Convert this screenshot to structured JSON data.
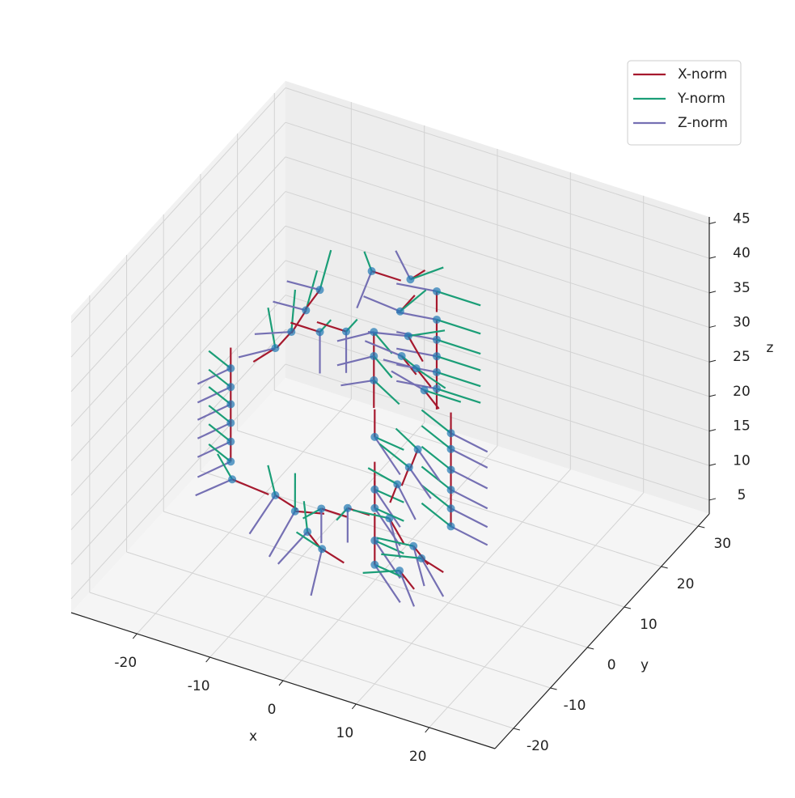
{
  "chart_data": {
    "type": "quiver3d",
    "xlabel": "x",
    "ylabel": "y",
    "zlabel": "z",
    "xlim": [
      -29,
      29
    ],
    "ylim": [
      -25,
      33
    ],
    "zlim": [
      3,
      46
    ],
    "xticks": [
      -20,
      -10,
      0,
      10,
      20
    ],
    "yticks": [
      -20,
      -10,
      0,
      10,
      20,
      30
    ],
    "zticks": [
      5,
      10,
      15,
      20,
      25,
      30,
      35,
      40,
      45
    ],
    "grid": true,
    "legend": "upper right",
    "points": {
      "color": "#1f77b4",
      "x": [
        -19.3,
        -19.3,
        -19.3,
        -19.3,
        -19.3,
        -19.3,
        -19.1,
        -13.2,
        -10.5,
        -6.9,
        -3.3,
        -8.8,
        -6.8,
        -13.2,
        -11.0,
        -9.0,
        -7.1,
        -7.1,
        -3.5,
        -8.1,
        -7.8,
        -7.8,
        -7.8,
        0.8,
        0.8,
        0.8,
        0.8,
        0.8,
        0.8,
        -4.2,
        -2.8,
        -3.1,
        -4.0,
        -2.0,
        -0.9,
        -0.1,
        -0.1,
        -0.1,
        -0.1,
        -0.1,
        7.8,
        7.8,
        7.8,
        7.8,
        7.8,
        7.8,
        5.8,
        4.6,
        3.0,
        1.9,
        5.2,
        6.3,
        3.3
      ],
      "y": [
        -1,
        -1,
        -1,
        -1,
        -1,
        -1,
        -1,
        -1,
        -1,
        -1,
        -1,
        -1,
        -1,
        -1,
        -1,
        -1,
        -1,
        -1,
        -1,
        15,
        15,
        15,
        15,
        15,
        15,
        15,
        15,
        15,
        15,
        15,
        15,
        15,
        15,
        15,
        15,
        0,
        0,
        0,
        0,
        0,
        5,
        5,
        5,
        5,
        5,
        5,
        0,
        0,
        0,
        0,
        0,
        0,
        0
      ],
      "z": [
        27.6,
        24.9,
        22.4,
        19.7,
        17.0,
        14.1,
        11.6,
        11.3,
        9.9,
        11.5,
        12.8,
        7.5,
        5.7,
        32.6,
        35.7,
        39.5,
        43.1,
        37.0,
        38.3,
        36.1,
        27.4,
        23.9,
        20.4,
        36.2,
        32.1,
        29.2,
        26.8,
        24.5,
        22.1,
        31.6,
        36.7,
        28.4,
        25.2,
        24.1,
        21.3,
        23.6,
        16.0,
        13.3,
        8.6,
        5.1,
        23.9,
        21.6,
        18.6,
        15.7,
        13.0,
        10.4,
        23.8,
        20.8,
        17.8,
        12.5,
        9.6,
        8.2,
        5.4
      ]
    },
    "series": [
      {
        "name": "X-norm",
        "color": "#a6192e",
        "u": [
          0,
          0,
          0,
          0,
          0,
          0,
          5,
          3,
          4,
          3.5,
          3,
          2,
          3,
          -3,
          -2,
          -2,
          -2,
          -4,
          -4,
          4,
          0,
          0,
          0,
          0,
          0,
          0,
          0,
          0,
          0,
          2,
          2,
          2,
          2,
          2,
          2,
          0,
          0,
          0,
          0,
          0,
          0,
          0,
          0,
          0,
          0,
          0,
          -1,
          -1,
          -1,
          2,
          2,
          3,
          2
        ],
        "v": [
          0,
          0,
          0,
          0,
          0,
          0,
          0,
          0,
          0,
          0,
          0,
          0,
          0,
          0,
          0,
          0,
          0,
          0,
          0,
          0,
          0,
          0,
          0,
          0,
          0,
          0,
          0,
          0,
          0,
          0,
          0,
          0,
          0,
          0,
          0,
          0,
          0,
          0,
          0,
          0,
          0,
          0,
          0,
          0,
          0,
          0,
          0,
          0,
          0,
          0,
          0,
          0,
          0
        ],
        "w": [
          3,
          3,
          3,
          3,
          3,
          3,
          -0.5,
          -1,
          1,
          0,
          0,
          -2,
          -1,
          -3,
          -3,
          -4,
          -3.5,
          0,
          0,
          0,
          -4,
          -4,
          -4,
          -3,
          -3,
          -3,
          -3,
          -3,
          -3,
          3,
          2,
          -3,
          -2,
          -2,
          -2,
          4,
          4,
          4,
          4,
          4,
          3,
          3,
          3,
          3,
          3,
          3,
          -3,
          -3,
          -3,
          -3,
          -2,
          -1,
          -2
        ]
      },
      {
        "name": "Y-norm",
        "color": "#1b9e77",
        "u": [
          -3,
          -3,
          -3,
          -3,
          -3,
          -3,
          -2,
          -1,
          -1,
          -1,
          0,
          -2,
          -3,
          -2,
          -1,
          0,
          0,
          0,
          0,
          0,
          4,
          4,
          5,
          6,
          6,
          6,
          6,
          6,
          6,
          2,
          3,
          4,
          4,
          5,
          5,
          5,
          5,
          5,
          5,
          5,
          -4,
          -4,
          -4,
          -4,
          -4,
          -4,
          -3,
          -4,
          -4,
          -4,
          -4,
          -4,
          -3
        ],
        "v": [
          0,
          0,
          0,
          0,
          0,
          0,
          0,
          0,
          2,
          -3,
          -3,
          3,
          -1,
          2,
          3,
          3,
          3,
          3,
          3,
          -2,
          -3,
          -3,
          -3,
          0,
          0,
          0,
          0,
          0,
          0,
          3,
          3,
          2,
          -3,
          -2,
          0,
          -2,
          -2,
          -2,
          -2,
          -2,
          0,
          0,
          0,
          0,
          0,
          0,
          0,
          0,
          0,
          -2,
          -2,
          -3,
          -4
        ],
        "w": [
          1.5,
          1.5,
          1.5,
          1.5,
          1.5,
          1.5,
          3,
          4,
          4,
          0,
          0,
          2,
          2,
          4,
          4,
          4,
          4,
          0,
          0,
          4,
          0,
          0,
          0,
          0,
          0,
          0,
          0,
          0,
          0,
          2,
          1,
          1,
          1,
          0,
          0,
          1,
          1,
          1,
          1,
          1,
          2,
          2,
          2,
          2,
          2,
          2,
          2,
          2,
          1,
          1,
          1,
          1,
          1
        ]
      },
      {
        "name": "Z-norm",
        "color": "#7570b3",
        "u": [
          -2,
          -2,
          -2,
          -2,
          -2,
          -2,
          -3,
          -1,
          -1,
          0,
          0,
          -2,
          0,
          -3,
          -3,
          -3,
          -3,
          0,
          0,
          0,
          -3,
          -3,
          -3,
          -5,
          -5,
          -5,
          -5,
          -5,
          -5,
          -4,
          -1,
          -4,
          -4,
          -3,
          -4,
          5,
          5,
          5,
          5,
          5,
          5,
          5,
          5,
          5,
          5,
          5,
          4,
          4,
          4,
          3,
          3,
          4,
          3
        ],
        "v": [
          -5,
          -5,
          -5,
          -5,
          -5,
          -5,
          -4,
          -5,
          -5,
          0,
          0,
          -4,
          -3,
          -4,
          -4,
          -3,
          -3,
          0,
          0,
          -4,
          -4,
          -4,
          -3,
          -1,
          -1,
          -1,
          -1,
          -1,
          -1,
          -2,
          -2,
          -3,
          -2,
          -3,
          -1,
          -3,
          -3,
          -3,
          -3,
          -3,
          0,
          0,
          0,
          0,
          0,
          0,
          -2,
          -2,
          -3,
          -3,
          -3,
          -2,
          -2
        ],
        "w": [
          0,
          0,
          0,
          0,
          0,
          0,
          -1,
          -3,
          -4,
          -5,
          -5,
          -3,
          -5,
          0,
          1,
          2,
          2,
          -6,
          -6,
          -3,
          0,
          0,
          0,
          0,
          0,
          0,
          0,
          0,
          0,
          2,
          5,
          1,
          2,
          2,
          2,
          -2,
          -2,
          -2,
          -2,
          -2,
          -1,
          -1,
          -1,
          -1,
          -1,
          -1,
          -2,
          -2,
          -2,
          -3,
          -3,
          -3,
          -3
        ]
      }
    ]
  }
}
